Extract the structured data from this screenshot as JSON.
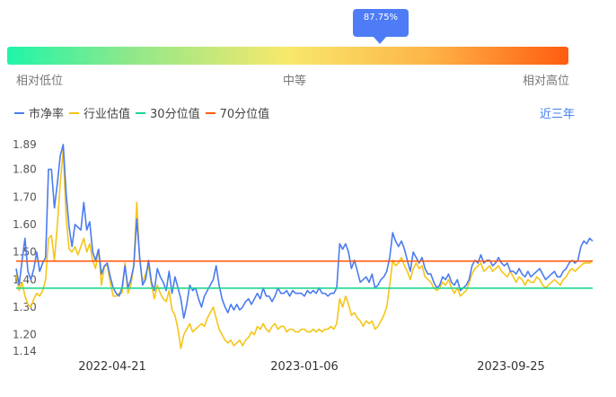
{
  "gauge": {
    "percentile_label": "87.75%",
    "percentile": 0.8775,
    "labels": {
      "low": "相对低位",
      "mid": "中等",
      "high": "相对高位"
    }
  },
  "legend": [
    {
      "label": "市净率",
      "color": "#4a7cf0"
    },
    {
      "label": "行业估值",
      "color": "#f5c518"
    },
    {
      "label": "30分位值",
      "color": "#20d690"
    },
    {
      "label": "70分位值",
      "color": "#ff5a10"
    }
  ],
  "period_label": "近三年",
  "chart_data": {
    "type": "line",
    "x_tick_labels": [
      "2022-04-21",
      "2023-01-06",
      "2023-09-25"
    ],
    "y_tick_labels": [
      "1.89",
      "1.80",
      "1.70",
      "1.60",
      "1.50",
      "1.40",
      "1.30",
      "1.20",
      "1.14"
    ],
    "ylim": [
      1.14,
      1.89
    ],
    "ref_lines": [
      {
        "name": "30分位值",
        "value": 1.369,
        "color": "#20d690"
      },
      {
        "name": "70分位值",
        "value": 1.467,
        "color": "#ff5a10"
      }
    ],
    "series": [
      {
        "name": "市净率",
        "color": "#4a7cf0",
        "values": [
          1.44,
          1.38,
          1.47,
          1.55,
          1.43,
          1.4,
          1.44,
          1.5,
          1.43,
          1.46,
          1.48,
          1.8,
          1.8,
          1.66,
          1.75,
          1.85,
          1.89,
          1.71,
          1.59,
          1.52,
          1.6,
          1.59,
          1.58,
          1.68,
          1.58,
          1.61,
          1.5,
          1.47,
          1.51,
          1.42,
          1.45,
          1.46,
          1.41,
          1.37,
          1.35,
          1.34,
          1.37,
          1.45,
          1.37,
          1.4,
          1.45,
          1.62,
          1.48,
          1.38,
          1.4,
          1.47,
          1.39,
          1.36,
          1.44,
          1.41,
          1.39,
          1.36,
          1.43,
          1.35,
          1.41,
          1.37,
          1.33,
          1.26,
          1.31,
          1.38,
          1.36,
          1.37,
          1.33,
          1.3,
          1.34,
          1.36,
          1.38,
          1.4,
          1.45,
          1.38,
          1.33,
          1.3,
          1.28,
          1.31,
          1.29,
          1.31,
          1.29,
          1.3,
          1.32,
          1.33,
          1.31,
          1.33,
          1.35,
          1.33,
          1.37,
          1.34,
          1.34,
          1.32,
          1.34,
          1.37,
          1.35,
          1.35,
          1.36,
          1.34,
          1.36,
          1.35,
          1.35,
          1.35,
          1.34,
          1.36,
          1.35,
          1.36,
          1.35,
          1.37,
          1.35,
          1.35,
          1.34,
          1.35,
          1.35,
          1.37,
          1.53,
          1.51,
          1.53,
          1.5,
          1.44,
          1.47,
          1.43,
          1.39,
          1.4,
          1.41,
          1.39,
          1.42,
          1.37,
          1.38,
          1.4,
          1.41,
          1.43,
          1.48,
          1.57,
          1.54,
          1.52,
          1.54,
          1.51,
          1.47,
          1.43,
          1.5,
          1.48,
          1.46,
          1.48,
          1.44,
          1.42,
          1.42,
          1.39,
          1.37,
          1.38,
          1.41,
          1.4,
          1.42,
          1.39,
          1.38,
          1.4,
          1.36,
          1.37,
          1.38,
          1.4,
          1.45,
          1.47,
          1.46,
          1.49,
          1.46,
          1.47,
          1.47,
          1.45,
          1.46,
          1.48,
          1.46,
          1.45,
          1.46,
          1.43,
          1.43,
          1.42,
          1.44,
          1.42,
          1.41,
          1.43,
          1.41,
          1.42,
          1.43,
          1.44,
          1.42,
          1.4,
          1.41,
          1.42,
          1.43,
          1.41,
          1.41,
          1.43,
          1.44,
          1.46,
          1.47,
          1.46,
          1.47,
          1.52,
          1.54,
          1.53,
          1.55,
          1.54
        ]
      },
      {
        "name": "行业估值",
        "color": "#f5c518",
        "values": [
          1.42,
          1.36,
          1.39,
          1.34,
          1.31,
          1.3,
          1.33,
          1.35,
          1.34,
          1.36,
          1.4,
          1.55,
          1.56,
          1.47,
          1.6,
          1.75,
          1.87,
          1.62,
          1.51,
          1.5,
          1.52,
          1.49,
          1.52,
          1.55,
          1.5,
          1.53,
          1.47,
          1.44,
          1.51,
          1.38,
          1.45,
          1.45,
          1.39,
          1.34,
          1.34,
          1.35,
          1.35,
          1.46,
          1.35,
          1.38,
          1.45,
          1.68,
          1.47,
          1.39,
          1.42,
          1.45,
          1.38,
          1.33,
          1.38,
          1.35,
          1.33,
          1.32,
          1.36,
          1.29,
          1.27,
          1.22,
          1.15,
          1.2,
          1.22,
          1.24,
          1.21,
          1.22,
          1.23,
          1.24,
          1.23,
          1.26,
          1.28,
          1.3,
          1.26,
          1.22,
          1.2,
          1.18,
          1.17,
          1.18,
          1.16,
          1.17,
          1.18,
          1.16,
          1.18,
          1.19,
          1.21,
          1.2,
          1.23,
          1.22,
          1.24,
          1.22,
          1.21,
          1.23,
          1.24,
          1.22,
          1.23,
          1.23,
          1.21,
          1.22,
          1.22,
          1.21,
          1.21,
          1.22,
          1.22,
          1.21,
          1.21,
          1.22,
          1.21,
          1.22,
          1.21,
          1.22,
          1.22,
          1.23,
          1.22,
          1.24,
          1.33,
          1.3,
          1.34,
          1.31,
          1.27,
          1.28,
          1.26,
          1.25,
          1.23,
          1.25,
          1.24,
          1.25,
          1.22,
          1.23,
          1.25,
          1.27,
          1.3,
          1.38,
          1.47,
          1.45,
          1.46,
          1.48,
          1.45,
          1.43,
          1.4,
          1.44,
          1.46,
          1.44,
          1.45,
          1.41,
          1.4,
          1.39,
          1.37,
          1.36,
          1.37,
          1.39,
          1.38,
          1.4,
          1.37,
          1.35,
          1.37,
          1.34,
          1.35,
          1.36,
          1.39,
          1.42,
          1.44,
          1.45,
          1.46,
          1.43,
          1.44,
          1.45,
          1.43,
          1.44,
          1.45,
          1.43,
          1.42,
          1.41,
          1.43,
          1.41,
          1.39,
          1.41,
          1.4,
          1.38,
          1.4,
          1.39,
          1.39,
          1.41,
          1.4,
          1.38,
          1.37,
          1.38,
          1.39,
          1.4,
          1.39,
          1.38,
          1.4,
          1.41,
          1.43,
          1.44,
          1.43,
          1.44,
          1.45,
          1.46,
          1.46,
          1.46,
          1.47
        ]
      }
    ]
  }
}
